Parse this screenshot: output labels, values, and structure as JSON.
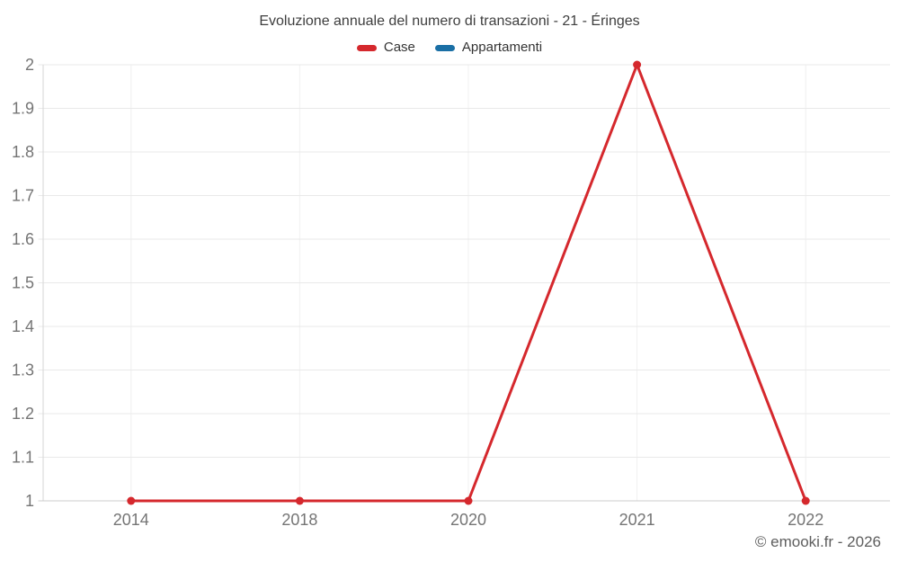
{
  "header": {
    "title": "Evoluzione annuale del numero di transazioni - 21 - Éringes",
    "legend": [
      {
        "label": "Case",
        "color": "#d5282d"
      },
      {
        "label": "Appartamenti",
        "color": "#1a6fa5"
      }
    ]
  },
  "footer": {
    "credit": "© emooki.fr - 2026"
  },
  "colors": {
    "grid_horizontal": "#e9e9e9",
    "grid_vertical": "#f0f0f0",
    "axis_left": "#d6d6d6",
    "axis_bottom": "#cccccc",
    "tick_label": "#757575"
  },
  "chart_data": {
    "type": "line",
    "title": "Evoluzione annuale del numero di transazioni - 21 - Éringes",
    "categories": [
      "2014",
      "2018",
      "2020",
      "2021",
      "2022"
    ],
    "series": [
      {
        "name": "Case",
        "color": "#d5282d",
        "values": [
          1,
          1,
          1,
          2,
          1
        ],
        "markers": true
      },
      {
        "name": "Appartamenti",
        "color": "#1a6fa5",
        "values": [
          null,
          null,
          null,
          null,
          null
        ],
        "markers": true
      }
    ],
    "xlabel": "",
    "ylabel": "",
    "ylim": [
      1,
      2
    ],
    "ytick_values": [
      1,
      1.1,
      1.2,
      1.3,
      1.4,
      1.5,
      1.6,
      1.7,
      1.8,
      1.9,
      2
    ],
    "ytick_labels": [
      "1",
      "1.1",
      "1.2",
      "1.3",
      "1.4",
      "1.5",
      "1.6",
      "1.7",
      "1.8",
      "1.9",
      "2"
    ],
    "grid": true,
    "legend_position": "top"
  }
}
